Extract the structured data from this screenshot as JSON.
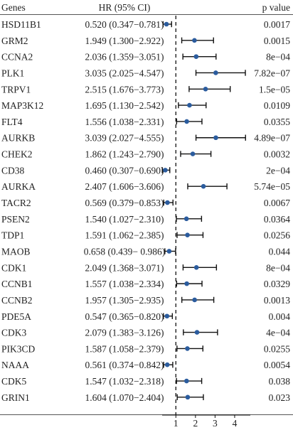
{
  "chart_data": {
    "type": "forest",
    "headers": {
      "genes": "Genes",
      "hr": "HR (95% CI)",
      "pvalue": "p value"
    },
    "x_ticks": [
      1,
      2,
      3,
      4
    ],
    "x_ticks_text": [
      "1",
      "2",
      "3",
      "4"
    ],
    "xlim": [
      0.3,
      4.8
    ],
    "reference_line": 1,
    "point_color": "#2b5c9e",
    "rows": [
      {
        "gene": "HSD11B1",
        "hr": 0.52,
        "lower": 0.347,
        "upper": 0.781,
        "hr_text": "0.520 (0.347−0.781)",
        "p": "0.0017"
      },
      {
        "gene": "GRM2",
        "hr": 1.949,
        "lower": 1.3,
        "upper": 2.922,
        "hr_text": "1.949 (1.300−2.922)",
        "p": "0.0015"
      },
      {
        "gene": "CCNA2",
        "hr": 2.036,
        "lower": 1.359,
        "upper": 3.051,
        "hr_text": "2.036 (1.359−3.051)",
        "p": "8e−04"
      },
      {
        "gene": "PLK1",
        "hr": 3.035,
        "lower": 2.025,
        "upper": 4.547,
        "hr_text": "3.035 (2.025−4.547)",
        "p": "7.82e−07"
      },
      {
        "gene": "TRPV1",
        "hr": 2.515,
        "lower": 1.676,
        "upper": 3.773,
        "hr_text": "2.515 (1.676−3.773)",
        "p": "1.5e−05"
      },
      {
        "gene": "MAP3K12",
        "hr": 1.695,
        "lower": 1.13,
        "upper": 2.542,
        "hr_text": "1.695 (1.130−2.542)",
        "p": "0.0109"
      },
      {
        "gene": "FLT4",
        "hr": 1.556,
        "lower": 1.038,
        "upper": 2.331,
        "hr_text": "1.556 (1.038−2.331)",
        "p": "0.0355"
      },
      {
        "gene": "AURKB",
        "hr": 3.039,
        "lower": 2.027,
        "upper": 4.555,
        "hr_text": "3.039 (2.027−4.555)",
        "p": "4.89e−07"
      },
      {
        "gene": "CHEK2",
        "hr": 1.862,
        "lower": 1.243,
        "upper": 2.79,
        "hr_text": "1.862 (1.243−2.790)",
        "p": "0.0032"
      },
      {
        "gene": "CD38",
        "hr": 0.46,
        "lower": 0.307,
        "upper": 0.69,
        "hr_text": "0.460 (0.307−0.690)",
        "p": "2e−04"
      },
      {
        "gene": "AURKA",
        "hr": 2.407,
        "lower": 1.606,
        "upper": 3.606,
        "hr_text": "2.407 (1.606−3.606)",
        "p": "5.74e−05"
      },
      {
        "gene": "TACR2",
        "hr": 0.569,
        "lower": 0.379,
        "upper": 0.853,
        "hr_text": "0.569 (0.379−0.853)",
        "p": "0.0067"
      },
      {
        "gene": "PSEN2",
        "hr": 1.54,
        "lower": 1.027,
        "upper": 2.31,
        "hr_text": "1.540 (1.027−2.310)",
        "p": "0.0364"
      },
      {
        "gene": "TDP1",
        "hr": 1.591,
        "lower": 1.062,
        "upper": 2.385,
        "hr_text": "1.591 (1.062−2.385)",
        "p": "0.0256"
      },
      {
        "gene": "MAOB",
        "hr": 0.658,
        "lower": 0.439,
        "upper": 0.986,
        "hr_text": "0.658 (0.439− 0.986)",
        "p": "0.044"
      },
      {
        "gene": "CDK1",
        "hr": 2.049,
        "lower": 1.368,
        "upper": 3.071,
        "hr_text": "2.049 (1.368−3.071)",
        "p": "8e−04"
      },
      {
        "gene": "CCNB1",
        "hr": 1.557,
        "lower": 1.038,
        "upper": 2.334,
        "hr_text": "1.557 (1.038−2.334)",
        "p": "0.0329"
      },
      {
        "gene": "CCNB2",
        "hr": 1.957,
        "lower": 1.305,
        "upper": 2.935,
        "hr_text": "1.957 (1.305−2.935)",
        "p": "0.0013"
      },
      {
        "gene": "PDE5A",
        "hr": 0.547,
        "lower": 0.365,
        "upper": 0.82,
        "hr_text": "0.547 (0.365−0.820)",
        "p": "0.004"
      },
      {
        "gene": "CDK3",
        "hr": 2.079,
        "lower": 1.383,
        "upper": 3.126,
        "hr_text": "2.079 (1.383−3.126)",
        "p": "4e−04"
      },
      {
        "gene": "PIK3CD",
        "hr": 1.587,
        "lower": 1.058,
        "upper": 2.379,
        "hr_text": "1.587 (1.058−2.379)",
        "p": "0.0255"
      },
      {
        "gene": "NAAA",
        "hr": 0.561,
        "lower": 0.374,
        "upper": 0.842,
        "hr_text": "0.561 (0.374−0.842)",
        "p": "0.0054"
      },
      {
        "gene": "CDK5",
        "hr": 1.547,
        "lower": 1.032,
        "upper": 2.318,
        "hr_text": "1.547 (1.032−2.318)",
        "p": "0.038"
      },
      {
        "gene": "GRIN1",
        "hr": 1.604,
        "lower": 1.07,
        "upper": 2.404,
        "hr_text": "1.604 (1.070−2.404)",
        "p": "0.023"
      }
    ]
  }
}
